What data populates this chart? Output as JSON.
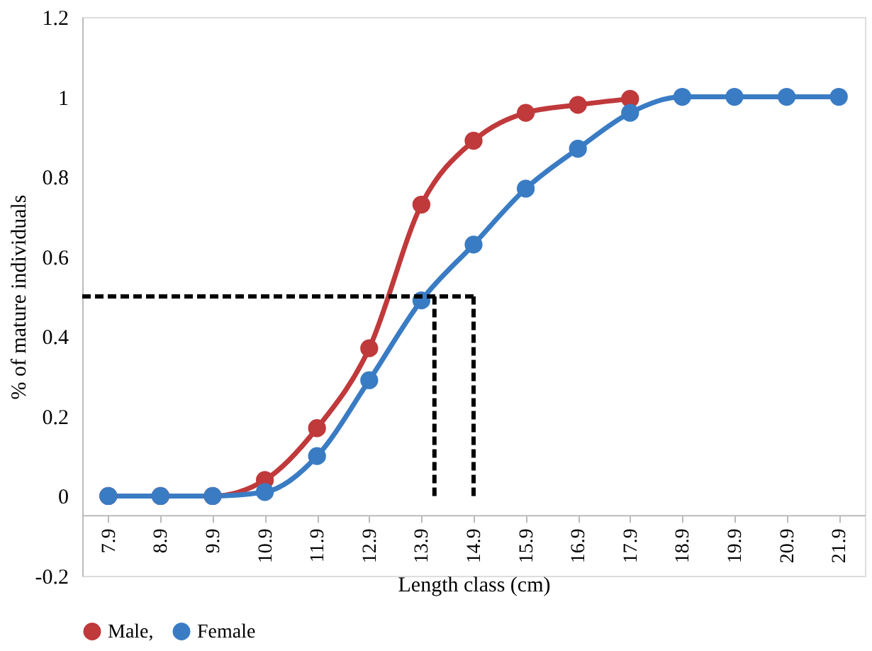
{
  "chart_data": {
    "type": "line",
    "xlabel": "Length class (cm)",
    "ylabel": "% of mature individuals",
    "x": [
      7.9,
      8.9,
      9.9,
      10.9,
      11.9,
      12.9,
      13.9,
      14.9,
      15.9,
      16.9,
      17.9,
      18.9,
      19.9,
      20.9,
      21.9
    ],
    "xlim": [
      7.4,
      22.4
    ],
    "xticks": [
      7.9,
      8.9,
      9.9,
      10.9,
      11.9,
      12.9,
      13.9,
      14.9,
      15.9,
      16.9,
      17.9,
      18.9,
      19.9,
      20.9,
      21.9
    ],
    "ylim": [
      -0.2,
      1.2
    ],
    "yticks": [
      -0.2,
      0,
      0.2,
      0.4,
      0.6,
      0.8,
      1,
      1.2
    ],
    "series": [
      {
        "name": "Male,",
        "color": "#c0393b",
        "values": [
          0,
          0,
          0,
          0.04,
          0.17,
          0.37,
          0.73,
          0.89,
          0.96,
          0.98,
          0.995,
          null,
          null,
          null,
          null
        ]
      },
      {
        "name": "Female",
        "color": "#3a7cc4",
        "values": [
          0,
          0,
          0,
          0.01,
          0.1,
          0.29,
          0.49,
          0.63,
          0.77,
          0.87,
          0.96,
          1,
          1,
          1,
          1
        ]
      }
    ],
    "ref_lines": [
      {
        "axis": "y",
        "value": 0.5,
        "color": "#000000",
        "line_style": "dashed"
      },
      {
        "axis": "x",
        "value": 14.15,
        "color": "#000000",
        "line_style": "dashed"
      },
      {
        "axis": "x",
        "value": 14.9,
        "color": "#000000",
        "line_style": "dashed"
      }
    ],
    "marker": "circle",
    "line_style": "solid",
    "grid": false,
    "legend": "bottom"
  }
}
